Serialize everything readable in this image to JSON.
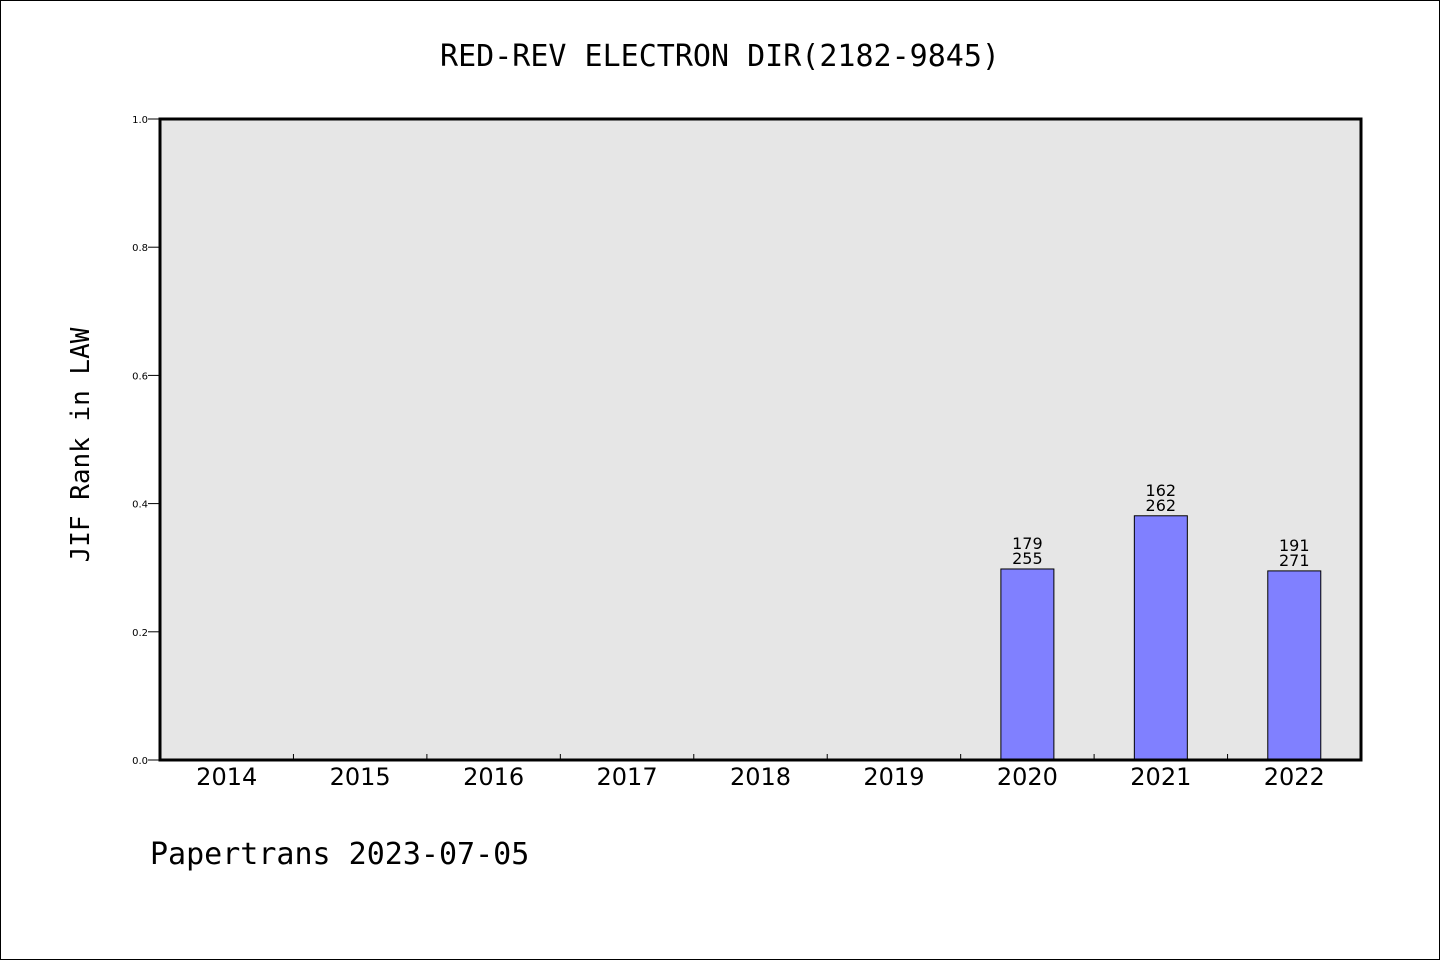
{
  "chart_data": {
    "type": "bar",
    "title": "RED-REV ELECTRON DIR(2182-9845)",
    "ylabel": "JIF Rank in LAW",
    "xlabel": "",
    "ylim": [
      0,
      1.0
    ],
    "yticks": [
      "0.0",
      "0.2",
      "0.4",
      "0.6",
      "0.8",
      "1.0"
    ],
    "categories": [
      "2014",
      "2015",
      "2016",
      "2017",
      "2018",
      "2019",
      "2020",
      "2021",
      "2022"
    ],
    "values": [
      null,
      null,
      null,
      null,
      null,
      null,
      0.298,
      0.381,
      0.295
    ],
    "rank_labels": [
      null,
      null,
      null,
      null,
      null,
      null,
      "179",
      "162",
      "191"
    ],
    "total_labels": [
      null,
      null,
      null,
      null,
      null,
      null,
      "255",
      "262",
      "271"
    ],
    "plot_background": "#e6e6e6",
    "bar_color": "#8080ff",
    "grid": false
  },
  "footer": "Papertrans 2023-07-05"
}
